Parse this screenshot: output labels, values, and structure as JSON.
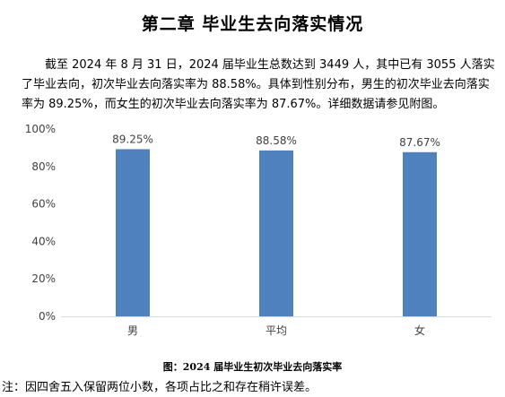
{
  "page": {
    "title": "第二章  毕业生去向落实情况",
    "paragraph": "截至 2024 年 8 月 31 日，2024 届毕业生总数达到 3449 人，其中已有 3055 人落实了毕业去向，初次毕业去向落实率为 88.58%。具体到性别分布，男生的初次毕业去向落实率为 89.25%，而女生的初次毕业去向落实率为 87.67%。详细数据请参见附图。",
    "caption": "图：2024 届毕业生初次毕业去向落实率",
    "note": "注：因四舍五入保留两位小数，各项占比之和存在稍许误差。"
  },
  "chart_data": {
    "type": "bar",
    "categories": [
      "男",
      "平均",
      "女"
    ],
    "values": [
      89.25,
      88.58,
      87.67
    ],
    "data_labels": [
      "89.25%",
      "88.58%",
      "87.67%"
    ],
    "ylim": [
      0,
      100
    ],
    "yticks": [
      0,
      20,
      40,
      60,
      80,
      100
    ],
    "ytick_labels": [
      "0%",
      "20%",
      "40%",
      "60%",
      "80%",
      "100%"
    ],
    "grid": false,
    "bar_color": "#4f81bd",
    "axis_color": "#d9d9d9"
  }
}
